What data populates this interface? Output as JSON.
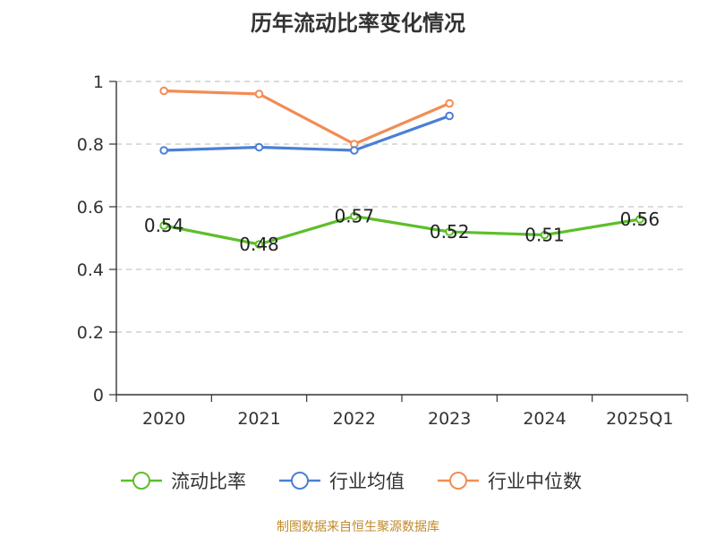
{
  "chart_data": {
    "type": "line",
    "title": "历年流动比率变化情况",
    "categories": [
      "2020",
      "2021",
      "2022",
      "2023",
      "2024",
      "2025Q1"
    ],
    "ylim": [
      0,
      1
    ],
    "yticks": [
      "0",
      "0.2",
      "0.4",
      "0.6",
      "0.8",
      "1"
    ],
    "grid": true,
    "legend_position": "bottom",
    "series": [
      {
        "name": "流动比率",
        "color": "#5cbf2a",
        "values": [
          0.54,
          0.48,
          0.57,
          0.52,
          0.51,
          0.56
        ],
        "labels": [
          "0.54",
          "0.48",
          "0.57",
          "0.52",
          "0.51",
          "0.56"
        ]
      },
      {
        "name": "行业均值",
        "color": "#4a7fd6",
        "values": [
          0.78,
          0.79,
          0.78,
          0.89,
          null,
          null
        ]
      },
      {
        "name": "行业中位数",
        "color": "#f28c54",
        "values": [
          0.97,
          0.96,
          0.8,
          0.93,
          null,
          null
        ]
      }
    ]
  },
  "footer": {
    "text": "制图数据来自恒生聚源数据库",
    "color": "#c08a2a"
  }
}
